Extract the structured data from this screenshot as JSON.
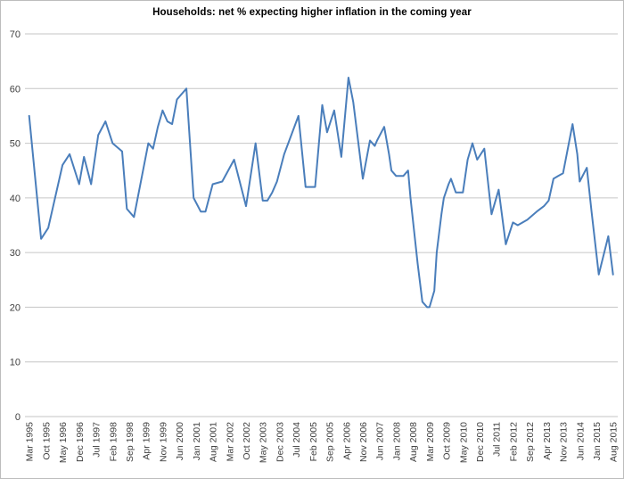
{
  "chart": {
    "title": "Households: net % expecting higher inflation in the coming year"
  },
  "colors": {
    "background": "#ffffff",
    "frame_border": "#bdbdbd",
    "gridline": "#c6c6c6",
    "axis_text": "#3f3f3f",
    "title_text": "#000000",
    "line": "#4a7ebb"
  },
  "chart_data": {
    "type": "line",
    "title": "Households: net % expecting higher inflation in the coming year",
    "series_name": "Households net % expecting higher inflation",
    "x_frequency": "monthly",
    "x_start": "Mar 1995",
    "x_end": "Aug 2015",
    "xlabel": "",
    "ylabel": "",
    "ylim": [
      0,
      70
    ],
    "y_ticks": [
      0,
      10,
      20,
      30,
      40,
      50,
      60,
      70
    ],
    "grid": "horizontal",
    "legend": "none",
    "x_tick_interval_months": 7,
    "x_tick_labels": [
      "Mar 1995",
      "Oct 1995",
      "May 1996",
      "Dec 1996",
      "Jul 1997",
      "Feb 1998",
      "Sep 1998",
      "Apr 1999",
      "Nov 1999",
      "Jun 2000",
      "Jan 2001",
      "Aug 2001",
      "Mar 2002",
      "Oct 2002",
      "May 2003",
      "Dec 2003",
      "Jul 2004",
      "Feb 2005",
      "Sep 2005",
      "Apr 2006",
      "Nov 2006",
      "Jun 2007",
      "Jan 2008",
      "Aug 2008",
      "Mar 2009",
      "Oct 2009",
      "May 2010",
      "Dec 2010",
      "Jul 2011",
      "Feb 2012",
      "Sep 2012",
      "Apr 2013",
      "Nov 2013",
      "Jun 2014",
      "Jan 2015",
      "Aug 2015"
    ],
    "points": [
      [
        "Mar 1995",
        55
      ],
      [
        "Aug 1995",
        32.5
      ],
      [
        "Nov 1995",
        34.5
      ],
      [
        "May 1996",
        46
      ],
      [
        "Aug 1996",
        48
      ],
      [
        "Dec 1996",
        42.5
      ],
      [
        "Feb 1997",
        47.5
      ],
      [
        "May 1997",
        42.5
      ],
      [
        "Aug 1997",
        51.5
      ],
      [
        "Nov 1997",
        54
      ],
      [
        "Feb 1998",
        50
      ],
      [
        "Jun 1998",
        48.5
      ],
      [
        "Aug 1998",
        38
      ],
      [
        "Nov 1998",
        36.5
      ],
      [
        "May 1999",
        50
      ],
      [
        "Jul 1999",
        49
      ],
      [
        "Sep 1999",
        53
      ],
      [
        "Nov 1999",
        56
      ],
      [
        "Jan 2000",
        54
      ],
      [
        "Mar 2000",
        53.5
      ],
      [
        "May 2000",
        58
      ],
      [
        "Sep 2000",
        60
      ],
      [
        "Dec 2000",
        40
      ],
      [
        "Mar 2001",
        37.5
      ],
      [
        "May 2001",
        37.5
      ],
      [
        "Aug 2001",
        42.5
      ],
      [
        "Dec 2001",
        43
      ],
      [
        "May 2002",
        47
      ],
      [
        "Oct 2002",
        38.5
      ],
      [
        "Feb 2003",
        50
      ],
      [
        "May 2003",
        39.5
      ],
      [
        "Jul 2003",
        39.5
      ],
      [
        "Sep 2003",
        41
      ],
      [
        "Nov 2003",
        43
      ],
      [
        "Feb 2004",
        48
      ],
      [
        "May 2004",
        51.5
      ],
      [
        "Aug 2004",
        55
      ],
      [
        "Nov 2004",
        42
      ],
      [
        "Mar 2005",
        42
      ],
      [
        "Jun 2005",
        57
      ],
      [
        "Aug 2005",
        52
      ],
      [
        "Nov 2005",
        56
      ],
      [
        "Feb 2006",
        47.5
      ],
      [
        "May 2006",
        62
      ],
      [
        "Jul 2006",
        57.5
      ],
      [
        "Nov 2006",
        43.5
      ],
      [
        "Feb 2007",
        50.5
      ],
      [
        "Apr 2007",
        49.5
      ],
      [
        "May 2007",
        50.5
      ],
      [
        "Aug 2007",
        53
      ],
      [
        "Oct 2007",
        48
      ],
      [
        "Nov 2007",
        45
      ],
      [
        "Jan 2008",
        44
      ],
      [
        "Apr 2008",
        44
      ],
      [
        "Jun 2008",
        45
      ],
      [
        "Jul 2008",
        40
      ],
      [
        "Oct 2008",
        28
      ],
      [
        "Dec 2008",
        21
      ],
      [
        "Feb 2009",
        20
      ],
      [
        "Mar 2009",
        20
      ],
      [
        "May 2009",
        23
      ],
      [
        "Jun 2009",
        30
      ],
      [
        "Aug 2009",
        37
      ],
      [
        "Sep 2009",
        40
      ],
      [
        "Nov 2009",
        42.5
      ],
      [
        "Dec 2009",
        43.5
      ],
      [
        "Feb 2010",
        41
      ],
      [
        "May 2010",
        41
      ],
      [
        "Jul 2010",
        47
      ],
      [
        "Sep 2010",
        50
      ],
      [
        "Nov 2010",
        47
      ],
      [
        "Feb 2011",
        49
      ],
      [
        "May 2011",
        37
      ],
      [
        "Aug 2011",
        41.5
      ],
      [
        "Nov 2011",
        31.5
      ],
      [
        "Feb 2012",
        35.5
      ],
      [
        "Apr 2012",
        35
      ],
      [
        "Aug 2012",
        36
      ],
      [
        "Dec 2012",
        37.5
      ],
      [
        "Mar 2013",
        38.5
      ],
      [
        "May 2013",
        39.5
      ],
      [
        "Jul 2013",
        43.5
      ],
      [
        "Sep 2013",
        44
      ],
      [
        "Nov 2013",
        44.5
      ],
      [
        "Mar 2014",
        53.5
      ],
      [
        "May 2014",
        48
      ],
      [
        "Jun 2014",
        43
      ],
      [
        "Sep 2014",
        45.5
      ],
      [
        "Nov 2014",
        37.5
      ],
      [
        "Feb 2015",
        26
      ],
      [
        "Jun 2015",
        33
      ],
      [
        "Aug 2015",
        26
      ]
    ]
  }
}
